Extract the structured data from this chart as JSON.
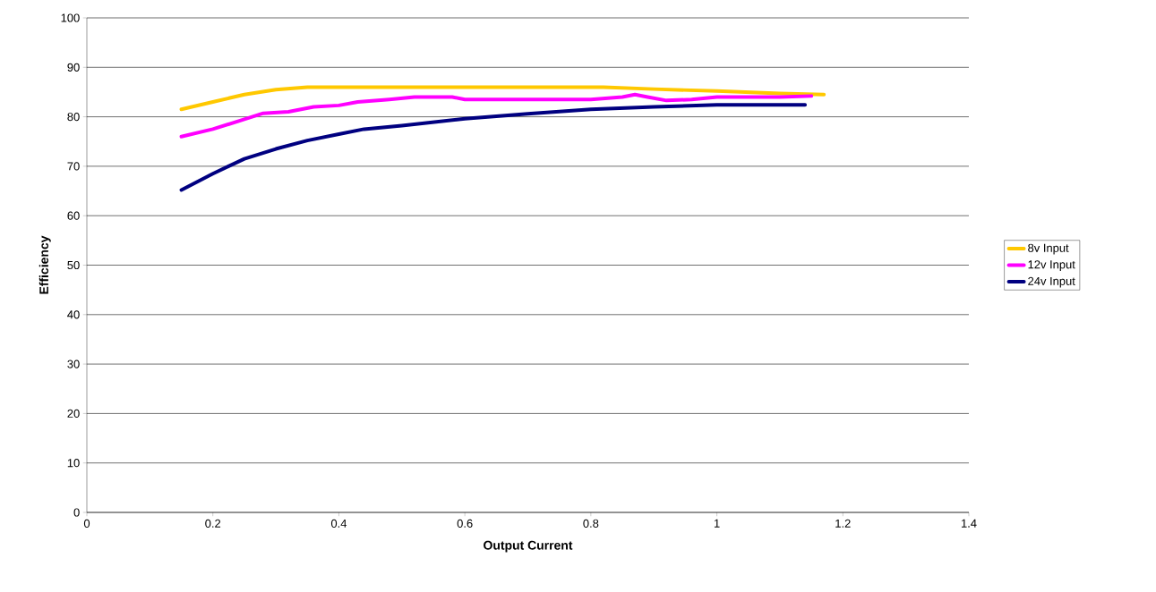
{
  "chart_data": {
    "type": "line",
    "xlabel": "Output Current",
    "ylabel": "Efficiency",
    "xlim": [
      0,
      1.4
    ],
    "xticks": [
      0,
      0.2,
      0.4,
      0.6,
      0.8,
      1,
      1.2,
      1.4
    ],
    "ylim": [
      0,
      100
    ],
    "yticks": [
      0,
      10,
      20,
      30,
      40,
      50,
      60,
      70,
      80,
      90,
      100
    ],
    "grid": "y",
    "legend": "right",
    "marker": "none",
    "line_style": "solid",
    "series": [
      {
        "name": "8v Input",
        "color": "#ffc800",
        "x": [
          0.15,
          0.2,
          0.25,
          0.3,
          0.35,
          0.5,
          0.7,
          0.82,
          0.9,
          1.0,
          1.1,
          1.17
        ],
        "values": [
          81.5,
          83,
          84.5,
          85.5,
          86,
          86,
          86,
          86,
          85.6,
          85.2,
          84.7,
          84.5
        ]
      },
      {
        "name": "12v Input",
        "color": "#ff00ff",
        "x": [
          0.15,
          0.2,
          0.25,
          0.28,
          0.32,
          0.36,
          0.4,
          0.43,
          0.48,
          0.52,
          0.58,
          0.6,
          0.8,
          0.85,
          0.87,
          0.89,
          0.92,
          0.96,
          1.0,
          1.1,
          1.15
        ],
        "values": [
          76,
          77.5,
          79.5,
          80.7,
          81,
          82,
          82.3,
          83,
          83.5,
          84,
          84,
          83.5,
          83.5,
          84,
          84.5,
          84,
          83.3,
          83.5,
          84,
          84,
          84.2
        ]
      },
      {
        "name": "24v Input",
        "color": "#000080",
        "x": [
          0.15,
          0.2,
          0.25,
          0.3,
          0.35,
          0.4,
          0.44,
          0.5,
          0.6,
          0.7,
          0.8,
          0.9,
          1.0,
          1.14
        ],
        "values": [
          65.2,
          68.5,
          71.5,
          73.5,
          75.2,
          76.5,
          77.5,
          78.2,
          79.6,
          80.6,
          81.5,
          82,
          82.4,
          82.4
        ]
      }
    ]
  }
}
